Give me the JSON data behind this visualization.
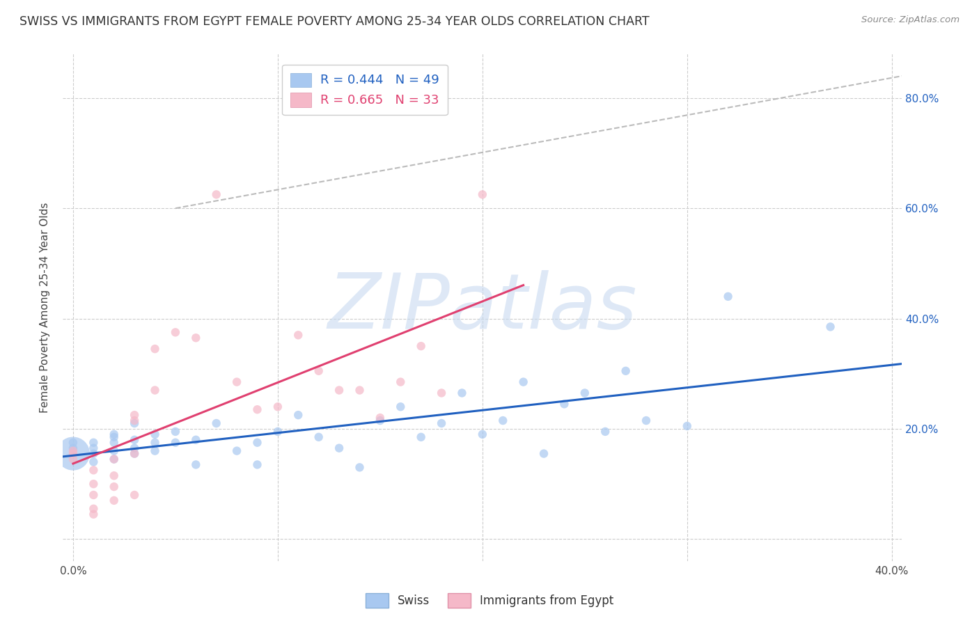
{
  "title": "SWISS VS IMMIGRANTS FROM EGYPT FEMALE POVERTY AMONG 25-34 YEAR OLDS CORRELATION CHART",
  "source": "Source: ZipAtlas.com",
  "ylabel": "Female Poverty Among 25-34 Year Olds",
  "xlim": [
    -0.005,
    0.405
  ],
  "ylim": [
    -0.04,
    0.88
  ],
  "ytick_pos": [
    0.0,
    0.2,
    0.4,
    0.6,
    0.8
  ],
  "ytick_labels": [
    "",
    "20.0%",
    "40.0%",
    "60.0%",
    "80.0%"
  ],
  "xtick_pos": [
    0.0,
    0.1,
    0.2,
    0.3,
    0.4
  ],
  "xtick_labels": [
    "0.0%",
    "",
    "",
    "",
    "40.0%"
  ],
  "swiss_color": "#a8c8f0",
  "egypt_color": "#f5b8c8",
  "swiss_line_color": "#2060c0",
  "egypt_line_color": "#e04070",
  "ref_line_color": "#bbbbbb",
  "legend_r_swiss": "R = 0.444",
  "legend_n_swiss": "N = 49",
  "legend_r_egypt": "R = 0.665",
  "legend_n_egypt": "N = 33",
  "watermark": "ZIPatlas",
  "swiss_x": [
    0.0,
    0.0,
    0.0,
    0.01,
    0.01,
    0.01,
    0.01,
    0.02,
    0.02,
    0.02,
    0.02,
    0.02,
    0.03,
    0.03,
    0.03,
    0.03,
    0.04,
    0.04,
    0.04,
    0.05,
    0.05,
    0.06,
    0.06,
    0.07,
    0.08,
    0.09,
    0.09,
    0.1,
    0.11,
    0.12,
    0.13,
    0.14,
    0.15,
    0.16,
    0.17,
    0.18,
    0.19,
    0.2,
    0.21,
    0.22,
    0.23,
    0.24,
    0.25,
    0.26,
    0.27,
    0.28,
    0.3,
    0.32,
    0.37
  ],
  "swiss_y": [
    0.155,
    0.165,
    0.175,
    0.14,
    0.155,
    0.165,
    0.175,
    0.145,
    0.16,
    0.175,
    0.185,
    0.19,
    0.155,
    0.165,
    0.18,
    0.21,
    0.16,
    0.175,
    0.19,
    0.175,
    0.195,
    0.135,
    0.18,
    0.21,
    0.16,
    0.135,
    0.175,
    0.195,
    0.225,
    0.185,
    0.165,
    0.13,
    0.215,
    0.24,
    0.185,
    0.21,
    0.265,
    0.19,
    0.215,
    0.285,
    0.155,
    0.245,
    0.265,
    0.195,
    0.305,
    0.215,
    0.205,
    0.44,
    0.385
  ],
  "swiss_size": [
    1200,
    80,
    80,
    80,
    80,
    80,
    80,
    80,
    80,
    80,
    80,
    80,
    80,
    80,
    80,
    80,
    80,
    80,
    80,
    80,
    80,
    80,
    80,
    80,
    80,
    80,
    80,
    80,
    80,
    80,
    80,
    80,
    80,
    80,
    80,
    80,
    80,
    80,
    80,
    80,
    80,
    80,
    80,
    80,
    80,
    80,
    80,
    80,
    80
  ],
  "egypt_x": [
    0.0,
    0.0,
    0.0,
    0.01,
    0.01,
    0.01,
    0.01,
    0.01,
    0.02,
    0.02,
    0.02,
    0.02,
    0.03,
    0.03,
    0.03,
    0.03,
    0.04,
    0.04,
    0.05,
    0.06,
    0.07,
    0.08,
    0.09,
    0.1,
    0.11,
    0.12,
    0.13,
    0.14,
    0.15,
    0.16,
    0.17,
    0.18,
    0.2
  ],
  "egypt_y": [
    0.145,
    0.16,
    0.155,
    0.055,
    0.08,
    0.1,
    0.125,
    0.045,
    0.07,
    0.095,
    0.115,
    0.145,
    0.08,
    0.155,
    0.215,
    0.225,
    0.345,
    0.27,
    0.375,
    0.365,
    0.625,
    0.285,
    0.235,
    0.24,
    0.37,
    0.305,
    0.27,
    0.27,
    0.22,
    0.285,
    0.35,
    0.265,
    0.625
  ],
  "egypt_size": [
    80,
    80,
    80,
    80,
    80,
    80,
    80,
    80,
    80,
    80,
    80,
    80,
    80,
    80,
    80,
    80,
    80,
    80,
    80,
    80,
    80,
    80,
    80,
    80,
    80,
    80,
    80,
    80,
    80,
    80,
    80,
    80,
    80
  ],
  "background_color": "#ffffff",
  "grid_color": "#cccccc",
  "title_fontsize": 12.5,
  "axis_fontsize": 11,
  "tick_fontsize": 11,
  "legend_fontsize": 12
}
